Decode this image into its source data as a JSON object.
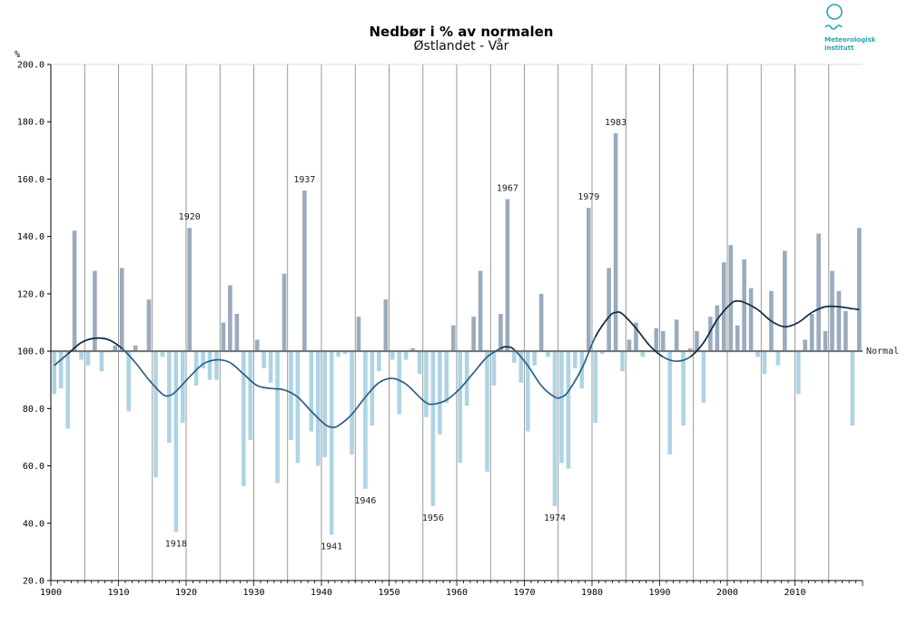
{
  "chart_data": {
    "type": "bar",
    "title": "Nedbør i % av normalen",
    "subtitle": "Østlandet - Vår",
    "ylabel": "%",
    "xlabel": "",
    "normal_label": "Normal",
    "baseline": 100,
    "ylim": [
      20,
      200
    ],
    "xlim": [
      1900,
      2020
    ],
    "yticks": [
      "20.0",
      "40.0",
      "60.0",
      "80.0",
      "100.0",
      "120.0",
      "140.0",
      "160.0",
      "180.0",
      "200.0"
    ],
    "xticks": [
      "1900",
      "1910",
      "1920",
      "1930",
      "1940",
      "1950",
      "1960",
      "1970",
      "1980",
      "1990",
      "2000",
      "2010"
    ],
    "years": [
      1900,
      1901,
      1902,
      1903,
      1904,
      1905,
      1906,
      1907,
      1908,
      1909,
      1910,
      1911,
      1912,
      1913,
      1914,
      1915,
      1916,
      1917,
      1918,
      1919,
      1920,
      1921,
      1922,
      1923,
      1924,
      1925,
      1926,
      1927,
      1928,
      1929,
      1930,
      1931,
      1932,
      1933,
      1934,
      1935,
      1936,
      1937,
      1938,
      1939,
      1940,
      1941,
      1942,
      1943,
      1944,
      1945,
      1946,
      1947,
      1948,
      1949,
      1950,
      1951,
      1952,
      1953,
      1954,
      1955,
      1956,
      1957,
      1958,
      1959,
      1960,
      1961,
      1962,
      1963,
      1964,
      1965,
      1966,
      1967,
      1968,
      1969,
      1970,
      1971,
      1972,
      1973,
      1974,
      1975,
      1976,
      1977,
      1978,
      1979,
      1980,
      1981,
      1982,
      1983,
      1984,
      1985,
      1986,
      1987,
      1988,
      1989,
      1990,
      1991,
      1992,
      1993,
      1994,
      1995,
      1996,
      1997,
      1998,
      1999,
      2000,
      2001,
      2002,
      2003,
      2004,
      2005,
      2006,
      2007,
      2008,
      2009,
      2010,
      2011,
      2012,
      2013,
      2014,
      2015,
      2016,
      2017,
      2018,
      2019
    ],
    "values": [
      85,
      87,
      73,
      142,
      97,
      95,
      128,
      93,
      100,
      102,
      129,
      79,
      102,
      100,
      118,
      56,
      98,
      68,
      37,
      75,
      143,
      88,
      94,
      90,
      90,
      110,
      123,
      113,
      53,
      69,
      104,
      94,
      89,
      54,
      127,
      69,
      61,
      156,
      72,
      60,
      63,
      36,
      98,
      99,
      64,
      112,
      52,
      74,
      93,
      118,
      97,
      78,
      97,
      101,
      92,
      77,
      46,
      71,
      82,
      109,
      61,
      81,
      112,
      128,
      58,
      88,
      113,
      153,
      96,
      89,
      72,
      95,
      120,
      98,
      46,
      61,
      59,
      94,
      87,
      150,
      75,
      99,
      129,
      176,
      93,
      104,
      110,
      98,
      100,
      108,
      107,
      64,
      111,
      74,
      101,
      107,
      82,
      112,
      116,
      131,
      137,
      109,
      132,
      122,
      98,
      92,
      121,
      95,
      135,
      100,
      85,
      104,
      113,
      141,
      107,
      128,
      121,
      114,
      74,
      143
    ],
    "smoothed": {
      "years": [
        1900,
        1902,
        1904,
        1906,
        1908,
        1910,
        1912,
        1914,
        1916,
        1917,
        1918,
        1920,
        1922,
        1924,
        1926,
        1928,
        1930,
        1932,
        1934,
        1936,
        1938,
        1940,
        1941,
        1942,
        1944,
        1946,
        1948,
        1950,
        1952,
        1954,
        1955,
        1956,
        1958,
        1960,
        1962,
        1964,
        1966,
        1967,
        1968,
        1970,
        1972,
        1974,
        1975,
        1976,
        1978,
        1980,
        1982,
        1983,
        1984,
        1986,
        1988,
        1990,
        1992,
        1994,
        1996,
        1998,
        2000,
        2001,
        2002,
        2004,
        2006,
        2008,
        2010,
        2012,
        2014,
        2016,
        2018,
        2019
      ],
      "values": [
        95,
        99,
        103,
        104.5,
        104,
        101,
        96,
        90,
        85,
        84.5,
        86,
        91,
        95.5,
        97,
        96,
        92,
        88,
        87,
        86.5,
        84,
        79,
        74.5,
        73.5,
        74,
        78,
        84,
        89,
        90.5,
        88.5,
        84,
        82,
        81.5,
        83,
        87,
        92.5,
        98,
        101,
        101.5,
        100.5,
        95,
        88,
        84,
        84,
        86,
        94,
        105,
        112,
        113.5,
        113,
        108,
        102,
        98,
        96.5,
        98,
        103,
        111,
        116.5,
        117.5,
        117,
        114.5,
        110.5,
        108.5,
        110,
        113.5,
        115.5,
        115.5,
        114.8,
        114.5
      ]
    },
    "annotations": [
      {
        "year": 1918,
        "value": 37,
        "label": "1918",
        "position": "below"
      },
      {
        "year": 1920,
        "value": 143,
        "label": "1920",
        "position": "above"
      },
      {
        "year": 1937,
        "value": 156,
        "label": "1937",
        "position": "above"
      },
      {
        "year": 1941,
        "value": 36,
        "label": "1941",
        "position": "below"
      },
      {
        "year": 1946,
        "value": 52,
        "label": "1946",
        "position": "below"
      },
      {
        "year": 1956,
        "value": 46,
        "label": "1956",
        "position": "below"
      },
      {
        "year": 1967,
        "value": 153,
        "label": "1967",
        "position": "above"
      },
      {
        "year": 1974,
        "value": 46,
        "label": "1974",
        "position": "below"
      },
      {
        "year": 1979,
        "value": 150,
        "label": "1979",
        "position": "above"
      },
      {
        "year": 1983,
        "value": 176,
        "label": "1983",
        "position": "above"
      }
    ],
    "colors": {
      "above": "#9aabbd",
      "below": "#aed4e4",
      "curve_above": "#0d2a44",
      "curve_below": "#2a5f86",
      "baseline": "#707070",
      "grid": "#808080"
    }
  },
  "logo": {
    "line1": "Meteorologisk",
    "line2": "institutt",
    "color": "#2aa3b0"
  }
}
